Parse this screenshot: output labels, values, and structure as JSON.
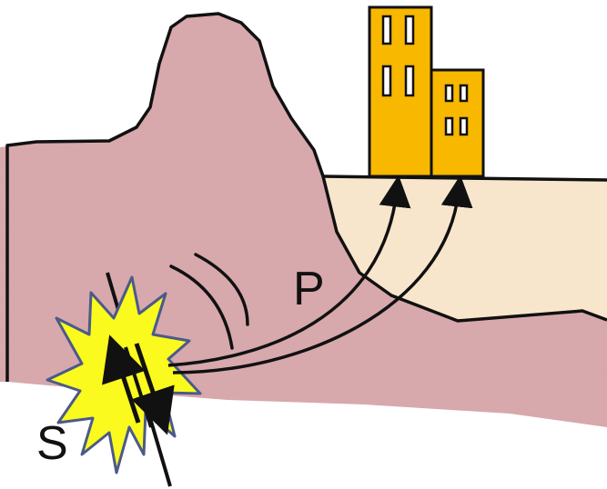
{
  "labels": {
    "p_wave": "P",
    "s_wave": "S"
  },
  "colors": {
    "rock": "#d9a9ad",
    "sediment": "#f8e6cc",
    "building": "#f8b800",
    "burst": "#fafa1e",
    "burst_outline": "#4a5a8a",
    "line": "#111111"
  },
  "icons": {
    "buildings": "building-icon",
    "epicenter": "explosion-icon",
    "fault": "fault-line-icon"
  }
}
